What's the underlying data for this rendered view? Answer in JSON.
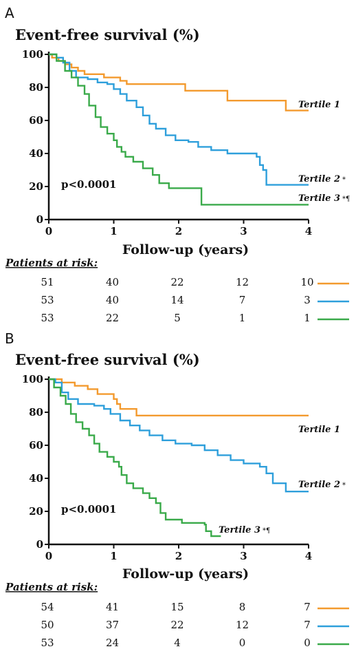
{
  "chart_data": [
    {
      "type": "line",
      "panel": "A",
      "title": "Event-free survival (%)",
      "xlabel": "Follow-up (years)",
      "ylabel": "",
      "xlim": [
        0,
        4
      ],
      "ylim": [
        0,
        100
      ],
      "x_ticks": [
        "0",
        "1",
        "2",
        "3",
        "4"
      ],
      "y_ticks": [
        "0",
        "20",
        "40",
        "60",
        "80",
        "100"
      ],
      "annotation": "p<0.0001",
      "series": [
        {
          "name": "Tertile 1",
          "marker": "",
          "color": "#F39A2E",
          "points": [
            [
              0,
              100
            ],
            [
              0.05,
              98
            ],
            [
              0.15,
              96
            ],
            [
              0.25,
              94
            ],
            [
              0.35,
              92
            ],
            [
              0.45,
              90
            ],
            [
              0.55,
              88
            ],
            [
              0.85,
              86
            ],
            [
              1.1,
              84
            ],
            [
              1.2,
              82
            ],
            [
              1.5,
              82
            ],
            [
              2.1,
              78
            ],
            [
              2.75,
              72
            ],
            [
              3.3,
              72
            ],
            [
              3.65,
              66
            ],
            [
              4.0,
              66
            ]
          ]
        },
        {
          "name": "Tertile 2",
          "marker": "*",
          "color": "#2E9FDB",
          "points": [
            [
              0,
              100
            ],
            [
              0.12,
              98
            ],
            [
              0.22,
              95
            ],
            [
              0.32,
              90
            ],
            [
              0.42,
              86
            ],
            [
              0.6,
              85
            ],
            [
              0.75,
              83
            ],
            [
              0.9,
              82
            ],
            [
              1.0,
              79
            ],
            [
              1.1,
              76
            ],
            [
              1.2,
              72
            ],
            [
              1.35,
              68
            ],
            [
              1.45,
              63
            ],
            [
              1.55,
              58
            ],
            [
              1.65,
              55
            ],
            [
              1.8,
              51
            ],
            [
              1.95,
              48
            ],
            [
              2.15,
              47
            ],
            [
              2.3,
              44
            ],
            [
              2.5,
              42
            ],
            [
              2.75,
              40
            ],
            [
              3.0,
              40
            ],
            [
              3.2,
              38
            ],
            [
              3.25,
              33
            ],
            [
              3.3,
              30
            ],
            [
              3.35,
              21
            ],
            [
              4.0,
              21
            ]
          ]
        },
        {
          "name": "Tertile 3",
          "marker": "*¶",
          "color": "#3AAA4A",
          "points": [
            [
              0,
              100
            ],
            [
              0.12,
              96
            ],
            [
              0.25,
              90
            ],
            [
              0.35,
              86
            ],
            [
              0.45,
              81
            ],
            [
              0.55,
              76
            ],
            [
              0.62,
              69
            ],
            [
              0.72,
              62
            ],
            [
              0.8,
              56
            ],
            [
              0.9,
              52
            ],
            [
              1.0,
              48
            ],
            [
              1.05,
              44
            ],
            [
              1.12,
              41
            ],
            [
              1.18,
              38
            ],
            [
              1.3,
              35
            ],
            [
              1.45,
              31
            ],
            [
              1.6,
              27
            ],
            [
              1.7,
              22
            ],
            [
              1.85,
              19
            ],
            [
              2.35,
              18
            ],
            [
              2.35,
              9
            ],
            [
              4.0,
              9
            ]
          ]
        }
      ],
      "at_risk": {
        "header": "Patients at risk:",
        "rows": [
          {
            "series": "Tertile 1",
            "values": [
              "51",
              "40",
              "22",
              "12",
              "10"
            ]
          },
          {
            "series": "Tertile 2",
            "values": [
              "53",
              "40",
              "14",
              "7",
              "3"
            ]
          },
          {
            "series": "Tertile 3",
            "values": [
              "53",
              "22",
              "5",
              "1",
              "1"
            ]
          }
        ]
      }
    },
    {
      "type": "line",
      "panel": "B",
      "title": "Event-free survival (%)",
      "xlabel": "Follow-up (years)",
      "ylabel": "",
      "xlim": [
        0,
        4
      ],
      "ylim": [
        0,
        100
      ],
      "x_ticks": [
        "0",
        "1",
        "2",
        "3",
        "4"
      ],
      "y_ticks": [
        "0",
        "20",
        "40",
        "60",
        "80",
        "100"
      ],
      "annotation": "p<0.0001",
      "series": [
        {
          "name": "Tertile 1",
          "marker": "",
          "color": "#F39A2E",
          "points": [
            [
              0,
              100
            ],
            [
              0.2,
              98
            ],
            [
              0.4,
              96
            ],
            [
              0.6,
              94
            ],
            [
              0.75,
              91
            ],
            [
              1.0,
              88
            ],
            [
              1.05,
              85
            ],
            [
              1.1,
              82
            ],
            [
              1.35,
              78
            ],
            [
              4.0,
              78
            ]
          ]
        },
        {
          "name": "Tertile 2",
          "marker": "*",
          "color": "#2E9FDB",
          "points": [
            [
              0,
              100
            ],
            [
              0.1,
              98
            ],
            [
              0.2,
              92
            ],
            [
              0.3,
              88
            ],
            [
              0.45,
              85
            ],
            [
              0.7,
              84
            ],
            [
              0.85,
              82
            ],
            [
              0.95,
              79
            ],
            [
              1.1,
              75
            ],
            [
              1.25,
              72
            ],
            [
              1.4,
              69
            ],
            [
              1.55,
              66
            ],
            [
              1.75,
              63
            ],
            [
              1.95,
              61
            ],
            [
              2.2,
              60
            ],
            [
              2.4,
              57
            ],
            [
              2.6,
              54
            ],
            [
              2.8,
              51
            ],
            [
              3.0,
              49
            ],
            [
              3.25,
              47
            ],
            [
              3.35,
              43
            ],
            [
              3.45,
              37
            ],
            [
              3.65,
              32
            ],
            [
              4.0,
              32
            ]
          ]
        },
        {
          "name": "Tertile 3",
          "marker": "*¶",
          "color": "#3AAA4A",
          "points": [
            [
              0,
              100
            ],
            [
              0.08,
              95
            ],
            [
              0.18,
              90
            ],
            [
              0.26,
              85
            ],
            [
              0.34,
              79
            ],
            [
              0.42,
              74
            ],
            [
              0.52,
              70
            ],
            [
              0.62,
              66
            ],
            [
              0.7,
              61
            ],
            [
              0.78,
              56
            ],
            [
              0.9,
              53
            ],
            [
              1.0,
              50
            ],
            [
              1.08,
              47
            ],
            [
              1.12,
              42
            ],
            [
              1.2,
              37
            ],
            [
              1.3,
              34
            ],
            [
              1.45,
              31
            ],
            [
              1.55,
              28
            ],
            [
              1.65,
              25
            ],
            [
              1.72,
              19
            ],
            [
              1.8,
              15
            ],
            [
              2.05,
              13
            ],
            [
              2.4,
              12
            ],
            [
              2.42,
              8
            ],
            [
              2.5,
              5
            ],
            [
              2.65,
              5
            ]
          ]
        }
      ],
      "at_risk": {
        "header": "Patients at risk:",
        "rows": [
          {
            "series": "Tertile 1",
            "values": [
              "54",
              "41",
              "15",
              "8",
              "7"
            ]
          },
          {
            "series": "Tertile 2",
            "values": [
              "50",
              "37",
              "22",
              "12",
              "7"
            ]
          },
          {
            "series": "Tertile 3",
            "values": [
              "53",
              "24",
              "4",
              "0",
              "0"
            ]
          }
        ]
      }
    }
  ]
}
